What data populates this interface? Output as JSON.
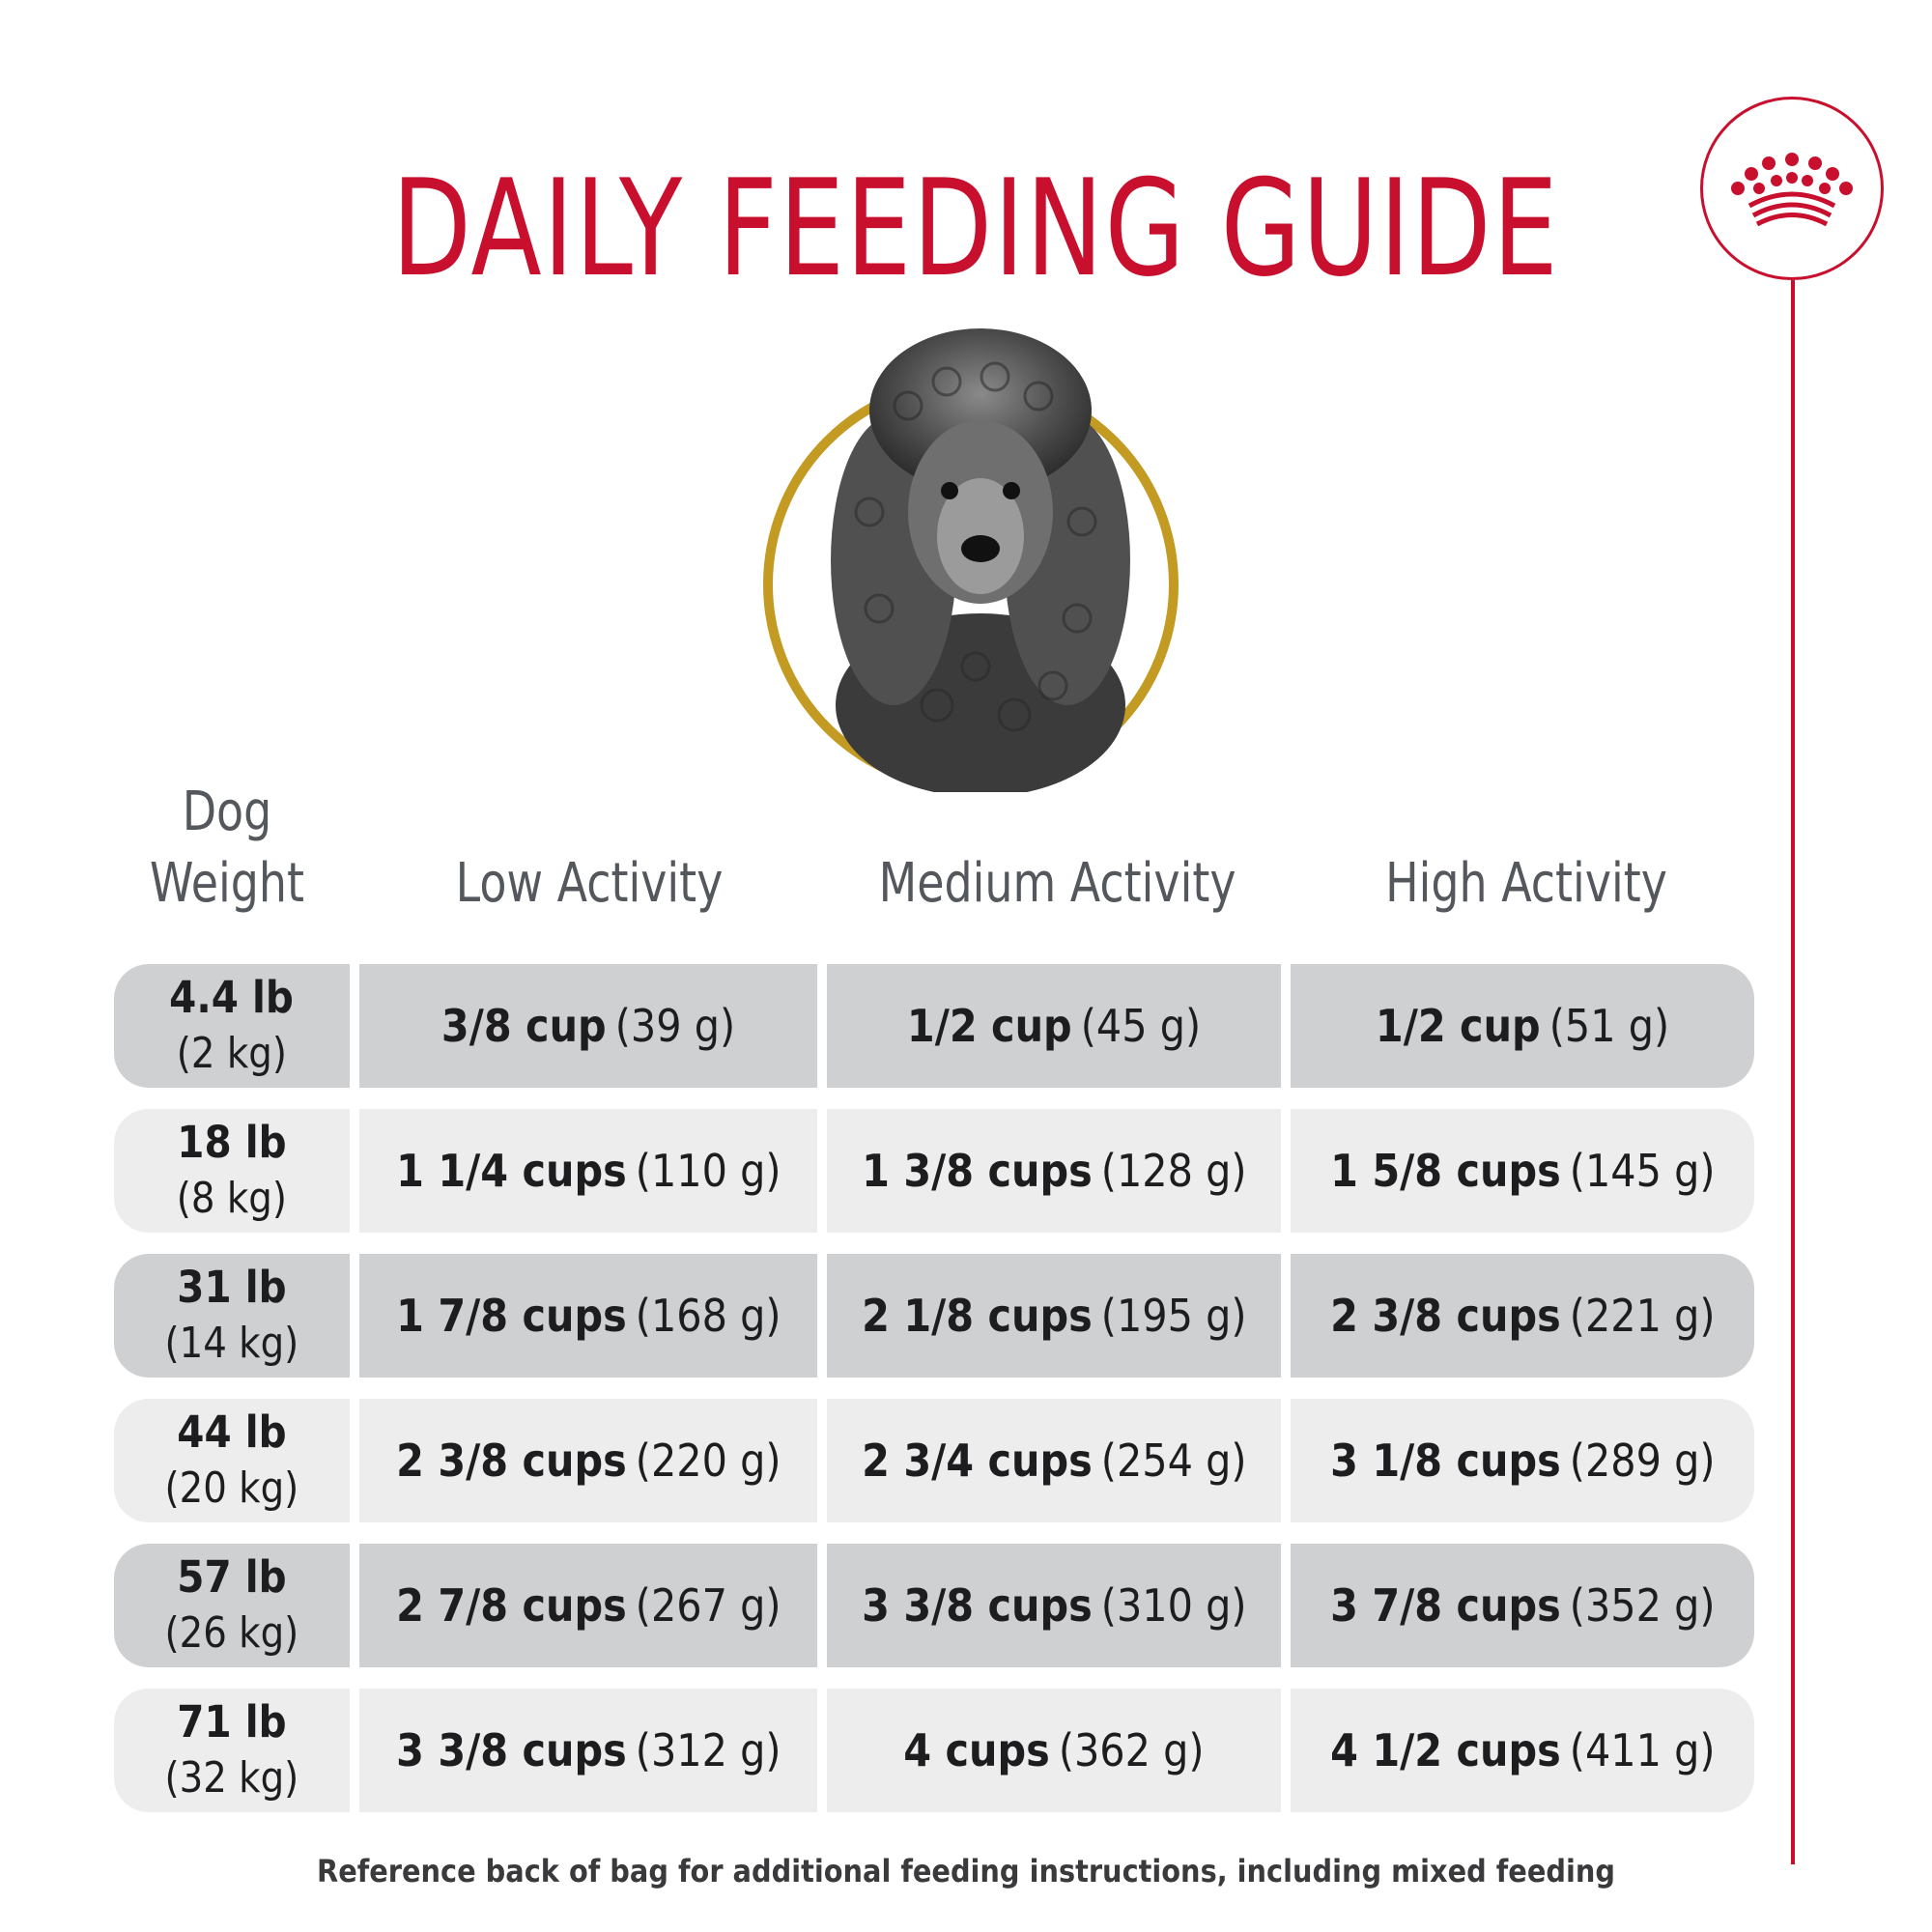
{
  "title": "DAILY FEEDING GUIDE",
  "logo": {
    "icon": "crown-icon",
    "color": "#c8102e"
  },
  "portrait": {
    "subject": "poodle",
    "ring_color": "#c39a22"
  },
  "headers": {
    "weight_line1": "Dog",
    "weight_line2": "Weight",
    "low": "Low Activity",
    "medium": "Medium Activity",
    "high": "High Activity"
  },
  "rows": [
    {
      "lb": "4.4 lb",
      "kg": "(2 kg)",
      "low_cups": "3/8 cup",
      "low_g": "(39 g)",
      "med_cups": "1/2 cup",
      "med_g": "(45 g)",
      "high_cups": "1/2 cup",
      "high_g": "(51 g)"
    },
    {
      "lb": "18 lb",
      "kg": "(8 kg)",
      "low_cups": "1 1/4 cups",
      "low_g": "(110 g)",
      "med_cups": "1 3/8 cups",
      "med_g": "(128 g)",
      "high_cups": "1 5/8 cups",
      "high_g": "(145 g)"
    },
    {
      "lb": "31 lb",
      "kg": "(14 kg)",
      "low_cups": "1 7/8 cups",
      "low_g": "(168 g)",
      "med_cups": "2 1/8 cups",
      "med_g": "(195 g)",
      "high_cups": "2 3/8 cups",
      "high_g": "(221 g)"
    },
    {
      "lb": "44 lb",
      "kg": "(20 kg)",
      "low_cups": "2 3/8 cups",
      "low_g": "(220 g)",
      "med_cups": "2 3/4 cups",
      "med_g": "(254 g)",
      "high_cups": "3 1/8 cups",
      "high_g": "(289 g)"
    },
    {
      "lb": "57 lb",
      "kg": "(26 kg)",
      "low_cups": "2 7/8 cups",
      "low_g": "(267 g)",
      "med_cups": "3 3/8 cups",
      "med_g": "(310 g)",
      "high_cups": "3 7/8 cups",
      "high_g": "(352 g)"
    },
    {
      "lb": "71 lb",
      "kg": "(32 kg)",
      "low_cups": "3 3/8 cups",
      "low_g": "(312 g)",
      "med_cups": "4 cups",
      "med_g": "(362 g)",
      "high_cups": "4 1/2 cups",
      "high_g": "(411 g)"
    }
  ],
  "footer": "Reference back of bag for additional feeding instructions, including mixed feeding",
  "colors": {
    "brand_red": "#c8102e",
    "row_dark": "#cfd0d2",
    "row_light": "#ededee",
    "header_text": "#54575c"
  }
}
